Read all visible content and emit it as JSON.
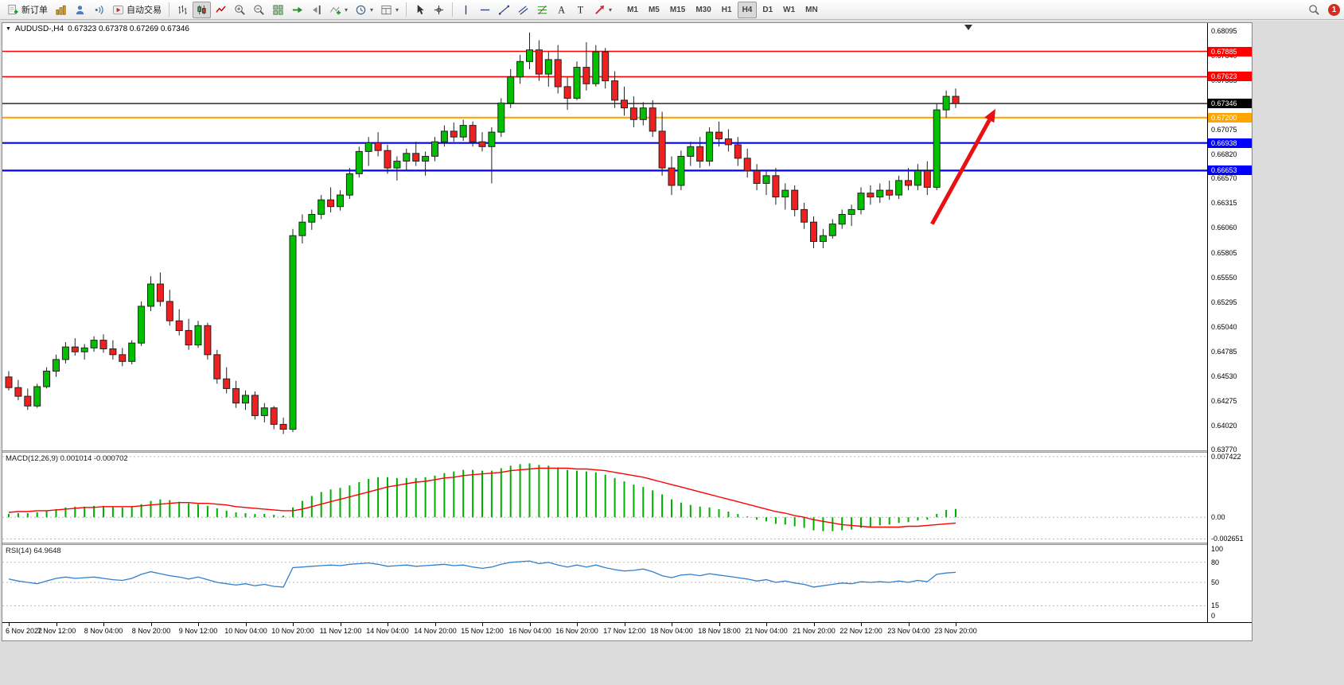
{
  "toolbar": {
    "new_order_label": "新订单",
    "auto_trading_label": "自动交易",
    "timeframes": [
      "M1",
      "M5",
      "M15",
      "M30",
      "H1",
      "H4",
      "D1",
      "W1",
      "MN"
    ],
    "active_timeframe": "H4",
    "badge_count": "1",
    "icon_names": [
      "new-order-icon",
      "new-chart-icon",
      "profiles-icon",
      "alerts-sound-icon",
      "auto-trading-icon",
      "bar-chart-icon",
      "candlestick-icon",
      "line-chart-icon",
      "zoom-in-icon",
      "zoom-out-icon",
      "tile-windows-icon",
      "auto-scroll-icon",
      "chart-shift-icon",
      "indicators-icon",
      "periods-clock-icon",
      "templates-icon",
      "cursor-icon",
      "crosshair-icon",
      "vertical-line-icon",
      "horizontal-line-icon",
      "trendline-icon",
      "channel-icon",
      "fibonacci-icon",
      "text-icon",
      "text-label-icon",
      "arrows-tool-icon",
      "search-icon"
    ]
  },
  "chart_data": [
    {
      "type": "candlestick",
      "symbol": "AUDUSD-",
      "period": "H4",
      "title": "AUDUSD-,H4",
      "ohlc_display": "0.67323 0.67378 0.67269 0.67346",
      "ylim_padded": [
        0.63762,
        0.68177
      ],
      "y_ticks": [
        "0.68095",
        "0.67840",
        "0.67585",
        "0.67330",
        "0.67075",
        "0.66820",
        "0.66570",
        "0.66315",
        "0.66060",
        "0.65805",
        "0.65550",
        "0.65295",
        "0.65040",
        "0.64785",
        "0.64530",
        "0.64275",
        "0.64020",
        "0.63770"
      ],
      "colors": {
        "up": "#00c000",
        "down": "#f02020",
        "wick": "#222222"
      },
      "hlines": [
        {
          "price": 0.67885,
          "label": "0.67885",
          "color": "#ff0000",
          "width": 1.6
        },
        {
          "price": 0.67623,
          "label": "0.67623",
          "color": "#ff0000",
          "width": 1.6
        },
        {
          "price": 0.67346,
          "label": "0.67346",
          "color": "#000000",
          "width": 1.2
        },
        {
          "price": 0.672,
          "label": "0.67200",
          "color": "#ffa500",
          "width": 2.2
        },
        {
          "price": 0.66938,
          "label": "0.66938",
          "color": "#0000ff",
          "width": 2.2
        },
        {
          "price": 0.66653,
          "label": "0.66653",
          "color": "#0000ff",
          "width": 2.2
        }
      ],
      "annotations": [
        {
          "type": "arrow",
          "from_bar": 97.5,
          "from_price": 0.661,
          "to_bar": 104.2,
          "to_price": 0.6729,
          "color": "#e81010"
        }
      ],
      "label_every_bars": 5,
      "time_labels": [
        "6 Nov 2022",
        "7 Nov 12:00",
        "8 Nov 04:00",
        "8 Nov 20:00",
        "9 Nov 12:00",
        "10 Nov 04:00",
        "10 Nov 20:00",
        "11 Nov 12:00",
        "14 Nov 04:00",
        "14 Nov 20:00",
        "15 Nov 12:00",
        "16 Nov 04:00",
        "16 Nov 20:00",
        "17 Nov 12:00",
        "18 Nov 04:00",
        "18 Nov 18:00",
        "21 Nov 04:00",
        "21 Nov 20:00",
        "22 Nov 12:00",
        "23 Nov 04:00",
        "23 Nov 20:00"
      ],
      "candles": [
        [
          0.6452,
          0.6458,
          0.6438,
          0.6441
        ],
        [
          0.6441,
          0.6449,
          0.6428,
          0.6432
        ],
        [
          0.6432,
          0.644,
          0.6418,
          0.6422
        ],
        [
          0.6422,
          0.6445,
          0.642,
          0.6442
        ],
        [
          0.6442,
          0.6462,
          0.644,
          0.6458
        ],
        [
          0.6458,
          0.6475,
          0.6452,
          0.647
        ],
        [
          0.647,
          0.6488,
          0.6466,
          0.6483
        ],
        [
          0.6483,
          0.6492,
          0.6474,
          0.6478
        ],
        [
          0.6478,
          0.6486,
          0.647,
          0.6482
        ],
        [
          0.6482,
          0.6494,
          0.6478,
          0.649
        ],
        [
          0.649,
          0.6496,
          0.6477,
          0.6481
        ],
        [
          0.6481,
          0.649,
          0.647,
          0.6475
        ],
        [
          0.6475,
          0.6482,
          0.6463,
          0.6468
        ],
        [
          0.6468,
          0.649,
          0.6465,
          0.6487
        ],
        [
          0.6487,
          0.653,
          0.6484,
          0.6525
        ],
        [
          0.6525,
          0.6556,
          0.652,
          0.6548
        ],
        [
          0.6548,
          0.656,
          0.6525,
          0.653
        ],
        [
          0.653,
          0.6542,
          0.6505,
          0.651
        ],
        [
          0.651,
          0.6522,
          0.6495,
          0.65
        ],
        [
          0.65,
          0.6512,
          0.648,
          0.6485
        ],
        [
          0.6485,
          0.651,
          0.6482,
          0.6505
        ],
        [
          0.6505,
          0.6508,
          0.647,
          0.6475
        ],
        [
          0.6475,
          0.648,
          0.6445,
          0.645
        ],
        [
          0.645,
          0.6462,
          0.6435,
          0.644
        ],
        [
          0.644,
          0.6448,
          0.642,
          0.6425
        ],
        [
          0.6425,
          0.6438,
          0.6418,
          0.6433
        ],
        [
          0.6433,
          0.6437,
          0.6408,
          0.6412
        ],
        [
          0.6412,
          0.6425,
          0.6405,
          0.642
        ],
        [
          0.642,
          0.6422,
          0.6398,
          0.6403
        ],
        [
          0.6403,
          0.641,
          0.6393,
          0.6398
        ],
        [
          0.6398,
          0.6605,
          0.6395,
          0.6598
        ],
        [
          0.6598,
          0.662,
          0.659,
          0.6612
        ],
        [
          0.6612,
          0.6625,
          0.6604,
          0.662
        ],
        [
          0.662,
          0.664,
          0.6615,
          0.6635
        ],
        [
          0.6635,
          0.6648,
          0.6622,
          0.6628
        ],
        [
          0.6628,
          0.6645,
          0.6624,
          0.664
        ],
        [
          0.664,
          0.6668,
          0.6636,
          0.6662
        ],
        [
          0.6662,
          0.669,
          0.6658,
          0.6685
        ],
        [
          0.6685,
          0.67,
          0.667,
          0.6694
        ],
        [
          0.6694,
          0.6705,
          0.668,
          0.6686
        ],
        [
          0.6686,
          0.6692,
          0.6662,
          0.6668
        ],
        [
          0.6668,
          0.668,
          0.6655,
          0.6675
        ],
        [
          0.6675,
          0.6688,
          0.6665,
          0.6683
        ],
        [
          0.6683,
          0.6695,
          0.667,
          0.6675
        ],
        [
          0.6675,
          0.6685,
          0.666,
          0.668
        ],
        [
          0.668,
          0.67,
          0.6675,
          0.6695
        ],
        [
          0.6695,
          0.6712,
          0.669,
          0.6706
        ],
        [
          0.6706,
          0.6715,
          0.6695,
          0.67
        ],
        [
          0.67,
          0.6718,
          0.6696,
          0.6712
        ],
        [
          0.6712,
          0.6716,
          0.669,
          0.6695
        ],
        [
          0.6695,
          0.6705,
          0.6685,
          0.669
        ],
        [
          0.669,
          0.671,
          0.6652,
          0.6705
        ],
        [
          0.6705,
          0.674,
          0.67,
          0.6735
        ],
        [
          0.6735,
          0.677,
          0.673,
          0.6762
        ],
        [
          0.6762,
          0.6785,
          0.6755,
          0.6778
        ],
        [
          0.6778,
          0.6808,
          0.677,
          0.679
        ],
        [
          0.679,
          0.68,
          0.6758,
          0.6765
        ],
        [
          0.6765,
          0.6788,
          0.6752,
          0.678
        ],
        [
          0.678,
          0.6795,
          0.6745,
          0.6752
        ],
        [
          0.6752,
          0.6762,
          0.6728,
          0.674
        ],
        [
          0.674,
          0.6778,
          0.6738,
          0.6772
        ],
        [
          0.6772,
          0.6798,
          0.6748,
          0.6755
        ],
        [
          0.6755,
          0.6795,
          0.6752,
          0.6788
        ],
        [
          0.6788,
          0.6792,
          0.675,
          0.6758
        ],
        [
          0.6758,
          0.6768,
          0.673,
          0.6738
        ],
        [
          0.6738,
          0.6752,
          0.6722,
          0.673
        ],
        [
          0.673,
          0.6742,
          0.671,
          0.6718
        ],
        [
          0.6718,
          0.6736,
          0.6712,
          0.673
        ],
        [
          0.673,
          0.6738,
          0.67,
          0.6706
        ],
        [
          0.6706,
          0.6726,
          0.666,
          0.6668
        ],
        [
          0.6668,
          0.668,
          0.664,
          0.665
        ],
        [
          0.665,
          0.6686,
          0.6645,
          0.668
        ],
        [
          0.668,
          0.6695,
          0.667,
          0.669
        ],
        [
          0.669,
          0.67,
          0.6668,
          0.6675
        ],
        [
          0.6675,
          0.671,
          0.667,
          0.6705
        ],
        [
          0.6705,
          0.6716,
          0.669,
          0.6698
        ],
        [
          0.6698,
          0.6708,
          0.6685,
          0.6692
        ],
        [
          0.6692,
          0.67,
          0.667,
          0.6678
        ],
        [
          0.6678,
          0.6688,
          0.6658,
          0.6665
        ],
        [
          0.6665,
          0.6672,
          0.6645,
          0.6652
        ],
        [
          0.6652,
          0.6665,
          0.664,
          0.666
        ],
        [
          0.666,
          0.6668,
          0.663,
          0.6638
        ],
        [
          0.6638,
          0.6652,
          0.6625,
          0.6645
        ],
        [
          0.6645,
          0.665,
          0.6618,
          0.6625
        ],
        [
          0.6625,
          0.6632,
          0.6605,
          0.6612
        ],
        [
          0.6612,
          0.6618,
          0.6585,
          0.6592
        ],
        [
          0.6592,
          0.6605,
          0.6585,
          0.6598
        ],
        [
          0.6598,
          0.6615,
          0.6595,
          0.661
        ],
        [
          0.661,
          0.6625,
          0.6605,
          0.662
        ],
        [
          0.662,
          0.663,
          0.6608,
          0.6625
        ],
        [
          0.6625,
          0.6648,
          0.662,
          0.6642
        ],
        [
          0.6642,
          0.665,
          0.663,
          0.6638
        ],
        [
          0.6638,
          0.6652,
          0.6632,
          0.6645
        ],
        [
          0.6645,
          0.6655,
          0.6635,
          0.664
        ],
        [
          0.664,
          0.666,
          0.6636,
          0.6655
        ],
        [
          0.6655,
          0.6668,
          0.6645,
          0.665
        ],
        [
          0.665,
          0.6672,
          0.6645,
          0.6665
        ],
        [
          0.6665,
          0.6675,
          0.664,
          0.6648
        ],
        [
          0.6648,
          0.6735,
          0.6645,
          0.6728
        ],
        [
          0.6728,
          0.6748,
          0.672,
          0.6742
        ],
        [
          0.6742,
          0.675,
          0.673,
          0.67346
        ]
      ]
    },
    {
      "type": "bar",
      "name": "MACD",
      "label": "MACD(12,26,9) 0.001014 -0.000702",
      "ylim": [
        -0.0031,
        0.0079
      ],
      "y_ticks": [
        {
          "v": 0.007422,
          "label": "0.007422"
        },
        {
          "v": 0,
          "label": "0.00"
        },
        {
          "v": -0.002651,
          "label": "-0.002651"
        }
      ],
      "colors": {
        "histogram": "#00b000",
        "signal": "#ff0000"
      },
      "histogram": [
        0.0004,
        0.0005,
        0.0005,
        0.0006,
        0.0008,
        0.001,
        0.0012,
        0.0013,
        0.0013,
        0.0014,
        0.0014,
        0.0013,
        0.0012,
        0.0013,
        0.0016,
        0.002,
        0.0022,
        0.0021,
        0.0019,
        0.0017,
        0.0016,
        0.0014,
        0.0011,
        0.0008,
        0.0006,
        0.0005,
        0.0004,
        0.0004,
        0.0003,
        0.0002,
        0.0012,
        0.002,
        0.0026,
        0.0031,
        0.0034,
        0.0036,
        0.0039,
        0.0043,
        0.0047,
        0.0049,
        0.0049,
        0.0048,
        0.0048,
        0.0048,
        0.0049,
        0.0051,
        0.0054,
        0.0056,
        0.0058,
        0.0058,
        0.0057,
        0.0057,
        0.006,
        0.0063,
        0.0065,
        0.0066,
        0.0064,
        0.0063,
        0.0061,
        0.0058,
        0.0057,
        0.0056,
        0.0055,
        0.0052,
        0.0048,
        0.0044,
        0.004,
        0.0037,
        0.0033,
        0.0028,
        0.0022,
        0.0018,
        0.0015,
        0.0013,
        0.0012,
        0.001,
        0.0007,
        0.0004,
        0.0001,
        -0.0003,
        -0.0005,
        -0.0008,
        -0.0009,
        -0.0011,
        -0.0013,
        -0.0016,
        -0.0017,
        -0.0017,
        -0.0016,
        -0.0015,
        -0.0013,
        -0.0012,
        -0.001,
        -0.0009,
        -0.0007,
        -0.0006,
        -0.0004,
        -0.0003,
        0.0004,
        0.0009,
        0.001014
      ],
      "signal": [
        0.0006,
        0.0007,
        0.0007,
        0.0008,
        0.0008,
        0.0009,
        0.001,
        0.0011,
        0.0012,
        0.0012,
        0.0013,
        0.0013,
        0.0013,
        0.0013,
        0.0014,
        0.0015,
        0.0016,
        0.0017,
        0.0018,
        0.0018,
        0.0017,
        0.0017,
        0.0016,
        0.0015,
        0.0013,
        0.0012,
        0.0011,
        0.001,
        0.0009,
        0.0008,
        0.0008,
        0.001,
        0.0013,
        0.0016,
        0.0019,
        0.0022,
        0.0025,
        0.0028,
        0.0031,
        0.0034,
        0.0037,
        0.0039,
        0.0041,
        0.0043,
        0.0044,
        0.0046,
        0.0048,
        0.0049,
        0.0051,
        0.0052,
        0.0053,
        0.0054,
        0.0055,
        0.0057,
        0.0058,
        0.0059,
        0.006,
        0.006,
        0.006,
        0.006,
        0.0059,
        0.0059,
        0.0058,
        0.0057,
        0.0055,
        0.0053,
        0.0051,
        0.0049,
        0.0046,
        0.0043,
        0.004,
        0.0037,
        0.0034,
        0.0031,
        0.0028,
        0.0025,
        0.0022,
        0.0019,
        0.0016,
        0.0013,
        0.001,
        0.0007,
        0.0005,
        0.0002,
        0.0,
        -0.0003,
        -0.0005,
        -0.0007,
        -0.0009,
        -0.001,
        -0.0011,
        -0.0012,
        -0.0012,
        -0.0012,
        -0.0012,
        -0.0011,
        -0.0011,
        -0.001,
        -0.0009,
        -0.0008,
        -0.000702
      ]
    },
    {
      "type": "line",
      "name": "RSI",
      "label": "RSI(14) 64.9648",
      "ylim": [
        0,
        100
      ],
      "y_ticks": [
        {
          "v": 100,
          "label": "100",
          "dashed": false
        },
        {
          "v": 80,
          "label": "80",
          "dashed": true
        },
        {
          "v": 50,
          "label": "50",
          "dashed": true
        },
        {
          "v": 15,
          "label": "15",
          "dashed": true
        },
        {
          "v": 0,
          "label": "0",
          "dashed": false
        }
      ],
      "colors": {
        "line": "#3080d0"
      },
      "values": [
        55,
        52,
        50,
        48,
        52,
        56,
        58,
        56,
        57,
        58,
        56,
        54,
        53,
        56,
        62,
        66,
        63,
        60,
        58,
        55,
        58,
        54,
        50,
        48,
        46,
        48,
        45,
        47,
        44,
        43,
        72,
        73,
        74,
        75,
        76,
        75,
        77,
        78,
        79,
        77,
        74,
        75,
        76,
        74,
        75,
        76,
        77,
        75,
        76,
        73,
        71,
        73,
        77,
        80,
        81,
        82,
        78,
        80,
        76,
        73,
        76,
        73,
        76,
        72,
        69,
        67,
        68,
        70,
        66,
        60,
        57,
        61,
        62,
        60,
        63,
        61,
        59,
        57,
        55,
        52,
        54,
        50,
        52,
        49,
        47,
        43,
        45,
        47,
        49,
        48,
        51,
        50,
        51,
        50,
        52,
        50,
        53,
        51,
        62,
        64,
        64.9648
      ]
    }
  ]
}
